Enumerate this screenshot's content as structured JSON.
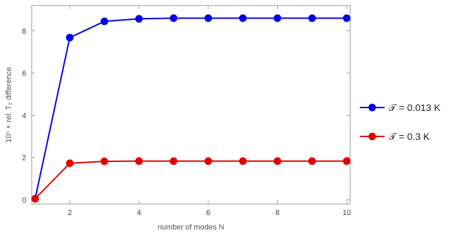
{
  "chart_data": {
    "type": "line",
    "xlabel": "number of modes N",
    "ylabel": "10⁵ × rel. T₂ difference",
    "xlim": [
      0.9,
      10.1
    ],
    "ylim": [
      -0.2,
      9.2
    ],
    "xticks": [
      2,
      4,
      6,
      8,
      10
    ],
    "yticks": [
      0,
      2,
      4,
      6,
      8
    ],
    "grid": false,
    "legend_position": "right",
    "series": [
      {
        "name": "𝒯 = 0.013 K",
        "color": "#0000e6",
        "x": [
          1,
          2,
          3,
          4,
          5,
          6,
          7,
          8,
          9,
          10
        ],
        "y": [
          0.05,
          7.68,
          8.45,
          8.57,
          8.6,
          8.6,
          8.6,
          8.6,
          8.6,
          8.6
        ]
      },
      {
        "name": "𝒯 = 0.3 K",
        "color": "#e60000",
        "x": [
          1,
          2,
          3,
          4,
          5,
          6,
          7,
          8,
          9,
          10
        ],
        "y": [
          0.05,
          1.73,
          1.82,
          1.83,
          1.83,
          1.83,
          1.83,
          1.83,
          1.83,
          1.83
        ]
      }
    ]
  }
}
